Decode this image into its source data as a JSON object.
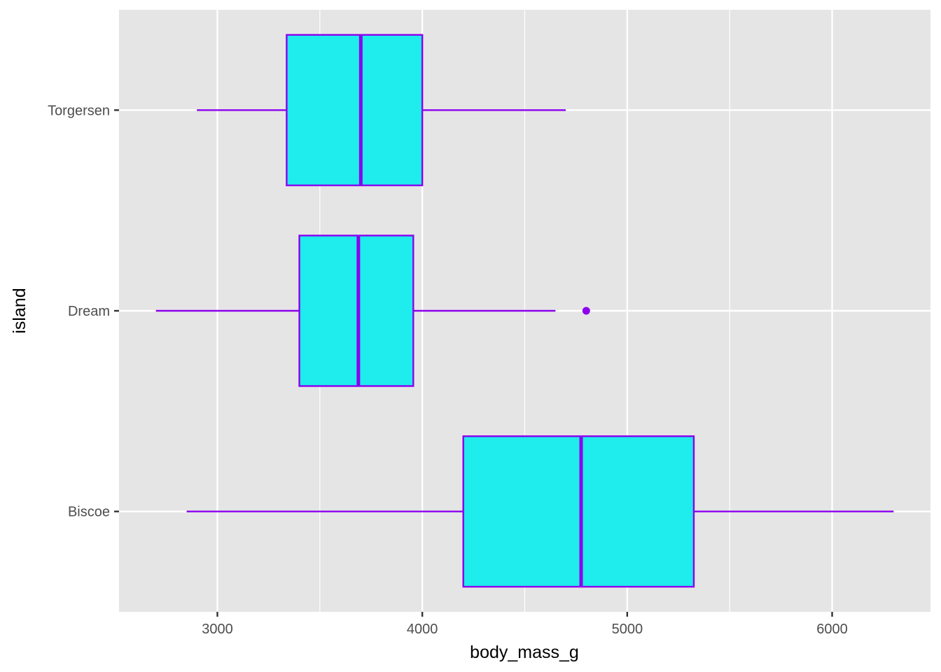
{
  "chart_data": {
    "type": "boxplot",
    "orientation": "horizontal",
    "title": "",
    "xlabel": "body_mass_g",
    "ylabel": "island",
    "xlim": [
      2520,
      6480
    ],
    "x_ticks": [
      3000,
      4000,
      5000,
      6000
    ],
    "x_minor_ticks": [
      3500,
      4500,
      5500
    ],
    "categories": [
      "Biscoe",
      "Dream",
      "Torgersen"
    ],
    "boxes": [
      {
        "category": "Biscoe",
        "whisker_low": 2850,
        "q1": 4200,
        "median": 4775,
        "q3": 5325,
        "whisker_high": 6300,
        "outliers": []
      },
      {
        "category": "Dream",
        "whisker_low": 2700,
        "q1": 3400,
        "median": 3688,
        "q3": 3956,
        "whisker_high": 4650,
        "outliers": [
          4800
        ]
      },
      {
        "category": "Torgersen",
        "whisker_low": 2900,
        "q1": 3338,
        "median": 3700,
        "q3": 4000,
        "whisker_high": 4700,
        "outliers": []
      }
    ],
    "grid": true,
    "colors": {
      "fill": "#1FECEC",
      "outline": "#8B00EE",
      "panel": "#E5E5E5",
      "grid": "#FFFFFF"
    }
  }
}
